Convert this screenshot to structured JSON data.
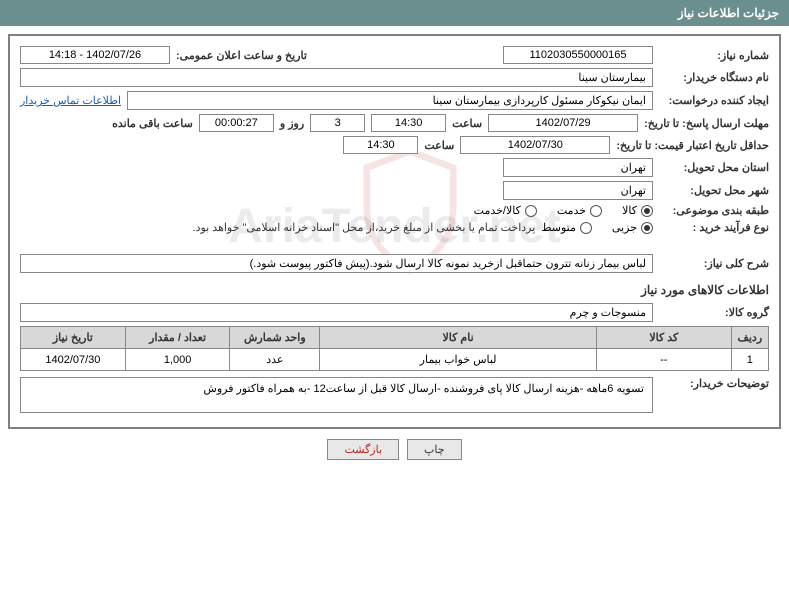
{
  "header": {
    "title": "جزئیات اطلاعات نیاز"
  },
  "fields": {
    "need_number_label": "شماره نیاز:",
    "need_number": "1102030550000165",
    "announce_date_label": "تاریخ و ساعت اعلان عمومی:",
    "announce_date": "1402/07/26 - 14:18",
    "buyer_org_label": "نام دستگاه خریدار:",
    "buyer_org": "بیمارستان سینا",
    "requester_label": "ایجاد کننده درخواست:",
    "requester": "ایمان نیکوکار مسئول کارپردازی  بیمارستان سینا",
    "buyer_contact_link": "اطلاعات تماس خریدار",
    "response_deadline_label": "مهلت ارسال پاسخ: تا تاریخ:",
    "response_deadline_date": "1402/07/29",
    "time_label": "ساعت",
    "response_deadline_time": "14:30",
    "days_count": "3",
    "days_and_label": "روز و",
    "countdown": "00:00:27",
    "remaining_label": "ساعت باقی مانده",
    "price_validity_label": "حداقل تاریخ اعتبار قیمت: تا تاریخ:",
    "price_validity_date": "1402/07/30",
    "price_validity_time": "14:30",
    "delivery_province_label": "استان محل تحویل:",
    "delivery_province": "تهران",
    "delivery_city_label": "شهر محل تحویل:",
    "delivery_city": "تهران",
    "category_label": "طبقه بندی موضوعی:",
    "radio_goods": "کالا",
    "radio_service": "خدمت",
    "radio_goods_service": "کالا/خدمت",
    "purchase_type_label": "نوع فرآیند خرید :",
    "radio_partial": "جزیی",
    "radio_medium": "متوسط",
    "payment_note": "پرداخت تمام یا بخشی از مبلغ خرید،از محل \"اسناد خزانه اسلامی\" خواهد بود.",
    "general_desc_label": "شرح کلی نیاز:",
    "general_desc": "لباس بیمار زنانه تترون حتماقبل ازخرید نمونه کالا ارسال شود.(پیش فاکتور پیوست شود.)",
    "goods_info_title": "اطلاعات کالاهای مورد نیاز",
    "goods_group_label": "گروه کالا:",
    "goods_group": "منسوجات و چرم",
    "buyer_notes_label": "توضیحات خریدار:",
    "buyer_notes": "تسویه 6ماهه -هزینه ارسال کالا پای فروشنده -ارسال کالا قبل از ساعت12 -به همراه فاکتور فروش"
  },
  "table": {
    "columns": [
      "ردیف",
      "کد کالا",
      "نام کالا",
      "واحد شمارش",
      "تعداد / مقدار",
      "تاریخ نیاز"
    ],
    "col_widths": [
      "5%",
      "18%",
      "37%",
      "12%",
      "14%",
      "14%"
    ],
    "rows": [
      [
        "1",
        "--",
        "لباس خواب بیمار",
        "عدد",
        "1,000",
        "1402/07/30"
      ]
    ]
  },
  "buttons": {
    "print": "چاپ",
    "back": "بازگشت"
  },
  "colors": {
    "header_bg": "#6b8e8e",
    "border": "#808080",
    "table_header": "#d8d8d8",
    "link": "#1a5fb4",
    "btn_back": "#b22222"
  },
  "watermark": "AriaTender.net"
}
